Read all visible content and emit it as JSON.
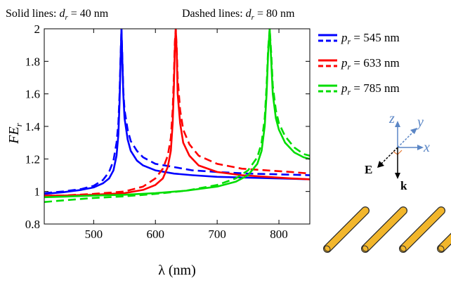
{
  "chart_data": {
    "type": "line",
    "notes": {
      "solid": {
        "text": "Solid lines: ",
        "var": "d",
        "sub": "r",
        "value": " = 40 nm"
      },
      "dashed": {
        "text": "Dashed lines: ",
        "var": "d",
        "sub": "r",
        "value": " = 80 nm"
      }
    },
    "xlabel": "λ (nm)",
    "ylabel": {
      "main": "FE",
      "sub": "r"
    },
    "xlim": [
      420,
      850
    ],
    "ylim": [
      0.8,
      2.0
    ],
    "xticks": [
      500,
      600,
      700,
      800
    ],
    "yticks": [
      0.8,
      1,
      1.2,
      1.4,
      1.6,
      1.8,
      2
    ],
    "grid": false,
    "legend_position": "top-right",
    "series": [
      {
        "name": "p_r = 545 nm",
        "legend": {
          "var": "p",
          "sub": "r",
          "value": " = 545 nm"
        },
        "color": "#0000ff",
        "solid": {
          "x": [
            420,
            450,
            480,
            500,
            515,
            525,
            532,
            537,
            540,
            542,
            543.5,
            545,
            546.5,
            548,
            550,
            555,
            560,
            570,
            580,
            600,
            630,
            660,
            700,
            750,
            800,
            850
          ],
          "y": [
            0.985,
            0.995,
            1.01,
            1.025,
            1.05,
            1.08,
            1.13,
            1.22,
            1.35,
            1.55,
            1.8,
            2.0,
            1.8,
            1.6,
            1.45,
            1.32,
            1.25,
            1.19,
            1.16,
            1.13,
            1.11,
            1.1,
            1.09,
            1.085,
            1.08,
            1.075
          ]
        },
        "dashed": {
          "x": [
            420,
            450,
            480,
            500,
            515,
            525,
            532,
            537,
            540,
            542,
            543.5,
            545,
            546.5,
            548,
            550,
            555,
            560,
            570,
            580,
            600,
            630,
            660,
            700,
            750,
            800,
            850
          ],
          "y": [
            0.99,
            1.0,
            1.015,
            1.035,
            1.07,
            1.12,
            1.19,
            1.3,
            1.42,
            1.6,
            1.82,
            2.0,
            1.82,
            1.62,
            1.5,
            1.38,
            1.31,
            1.25,
            1.21,
            1.17,
            1.15,
            1.13,
            1.12,
            1.11,
            1.105,
            1.1
          ]
        }
      },
      {
        "name": "p_r = 633 nm",
        "legend": {
          "var": "p",
          "sub": "r",
          "value": " = 633 nm"
        },
        "color": "#ff0000",
        "solid": {
          "x": [
            420,
            450,
            500,
            550,
            580,
            600,
            612,
            620,
            625,
            628,
            630,
            631.5,
            633,
            634.5,
            636,
            640,
            645,
            655,
            670,
            700,
            740,
            780,
            820,
            850
          ],
          "y": [
            0.975,
            0.975,
            0.98,
            0.99,
            1.01,
            1.04,
            1.08,
            1.15,
            1.25,
            1.42,
            1.65,
            1.88,
            2.0,
            1.85,
            1.6,
            1.42,
            1.3,
            1.22,
            1.16,
            1.12,
            1.1,
            1.09,
            1.08,
            1.075
          ]
        },
        "dashed": {
          "x": [
            420,
            450,
            500,
            550,
            580,
            600,
            612,
            620,
            625,
            628,
            630,
            631.5,
            633,
            634.5,
            636,
            640,
            645,
            655,
            670,
            700,
            740,
            780,
            820,
            850
          ],
          "y": [
            0.975,
            0.975,
            0.985,
            1.0,
            1.03,
            1.08,
            1.14,
            1.22,
            1.33,
            1.5,
            1.72,
            1.92,
            2.0,
            1.88,
            1.7,
            1.5,
            1.38,
            1.29,
            1.22,
            1.17,
            1.14,
            1.13,
            1.12,
            1.11
          ]
        }
      },
      {
        "name": "p_r = 785 nm",
        "legend": {
          "var": "p",
          "sub": "r",
          "value": " = 785 nm"
        },
        "color": "#00dd00",
        "solid": {
          "x": [
            420,
            450,
            500,
            550,
            600,
            650,
            700,
            730,
            750,
            765,
            772,
            777,
            780,
            782.5,
            785,
            787.5,
            790,
            795,
            800,
            810,
            825,
            840,
            850
          ],
          "y": [
            0.965,
            0.968,
            0.975,
            0.98,
            0.99,
            1.005,
            1.03,
            1.06,
            1.1,
            1.17,
            1.25,
            1.4,
            1.6,
            1.85,
            2.0,
            1.8,
            1.6,
            1.45,
            1.38,
            1.3,
            1.24,
            1.21,
            1.2
          ]
        },
        "dashed": {
          "x": [
            420,
            450,
            500,
            550,
            600,
            650,
            700,
            730,
            750,
            765,
            772,
            777,
            780,
            782.5,
            785,
            787.5,
            790,
            795,
            800,
            810,
            825,
            840,
            850
          ],
          "y": [
            0.935,
            0.945,
            0.96,
            0.97,
            0.985,
            1.005,
            1.04,
            1.08,
            1.13,
            1.21,
            1.3,
            1.45,
            1.65,
            1.88,
            2.0,
            1.85,
            1.65,
            1.5,
            1.42,
            1.34,
            1.27,
            1.23,
            1.22
          ]
        }
      }
    ]
  },
  "inset": {
    "coords": {
      "z": "z",
      "y": "y",
      "x": "x"
    },
    "vectors": {
      "E": "E",
      "k": "k"
    },
    "colors": {
      "axes": "#5b86c5",
      "rods": "#f2b62b",
      "rod_outline": "#2b2b2b"
    }
  }
}
